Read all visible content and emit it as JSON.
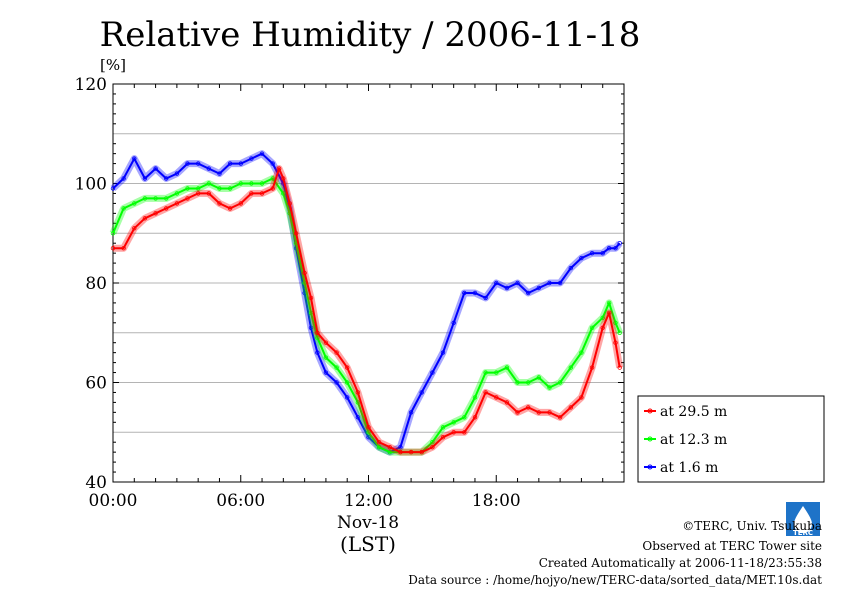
{
  "chart_data": {
    "type": "line",
    "title": "Relative Humidity / 2006-11-18",
    "yunit": "[%]",
    "xlabel_date": "Nov-18",
    "xlabel": "(LST)",
    "ylim": [
      40,
      120
    ],
    "xlim": [
      0,
      24
    ],
    "yticks": [
      "40",
      "60",
      "80",
      "100",
      "120"
    ],
    "xticks": [
      {
        "h": 0,
        "label": "00:00"
      },
      {
        "h": 6,
        "label": "06:00"
      },
      {
        "h": 12,
        "label": "12:00"
      },
      {
        "h": 18,
        "label": "18:00"
      }
    ],
    "grid": true,
    "legend_position": "bottom-right",
    "series": [
      {
        "name": "at 29.5 m",
        "color": "#ff0000",
        "points": [
          [
            0.0,
            87
          ],
          [
            0.5,
            87
          ],
          [
            1.0,
            91
          ],
          [
            1.5,
            93
          ],
          [
            2.0,
            94
          ],
          [
            2.5,
            95
          ],
          [
            3.0,
            96
          ],
          [
            3.5,
            97
          ],
          [
            4.0,
            98
          ],
          [
            4.5,
            98
          ],
          [
            5.0,
            96
          ],
          [
            5.5,
            95
          ],
          [
            6.0,
            96
          ],
          [
            6.5,
            98
          ],
          [
            7.0,
            98
          ],
          [
            7.5,
            99
          ],
          [
            7.8,
            103
          ],
          [
            8.0,
            101
          ],
          [
            8.3,
            96
          ],
          [
            8.6,
            90
          ],
          [
            9.0,
            82
          ],
          [
            9.3,
            77
          ],
          [
            9.6,
            70
          ],
          [
            10.0,
            68
          ],
          [
            10.5,
            66
          ],
          [
            11.0,
            63
          ],
          [
            11.5,
            58
          ],
          [
            12.0,
            51
          ],
          [
            12.5,
            48
          ],
          [
            13.0,
            47
          ],
          [
            13.5,
            46
          ],
          [
            14.0,
            46
          ],
          [
            14.5,
            46
          ],
          [
            15.0,
            47
          ],
          [
            15.5,
            49
          ],
          [
            16.0,
            50
          ],
          [
            16.5,
            50
          ],
          [
            17.0,
            53
          ],
          [
            17.5,
            58
          ],
          [
            18.0,
            57
          ],
          [
            18.5,
            56
          ],
          [
            19.0,
            54
          ],
          [
            19.5,
            55
          ],
          [
            20.0,
            54
          ],
          [
            20.5,
            54
          ],
          [
            21.0,
            53
          ],
          [
            21.5,
            55
          ],
          [
            22.0,
            57
          ],
          [
            22.5,
            63
          ],
          [
            23.0,
            71
          ],
          [
            23.3,
            74
          ],
          [
            23.6,
            68
          ],
          [
            23.8,
            63
          ]
        ]
      },
      {
        "name": "at 12.3 m",
        "color": "#00ff00",
        "points": [
          [
            0.0,
            90
          ],
          [
            0.5,
            95
          ],
          [
            1.0,
            96
          ],
          [
            1.5,
            97
          ],
          [
            2.0,
            97
          ],
          [
            2.5,
            97
          ],
          [
            3.0,
            98
          ],
          [
            3.5,
            99
          ],
          [
            4.0,
            99
          ],
          [
            4.5,
            100
          ],
          [
            5.0,
            99
          ],
          [
            5.5,
            99
          ],
          [
            6.0,
            100
          ],
          [
            6.5,
            100
          ],
          [
            7.0,
            100
          ],
          [
            7.5,
            101
          ],
          [
            8.0,
            98
          ],
          [
            8.3,
            94
          ],
          [
            8.6,
            88
          ],
          [
            9.0,
            80
          ],
          [
            9.3,
            74
          ],
          [
            9.6,
            69
          ],
          [
            10.0,
            65
          ],
          [
            10.5,
            63
          ],
          [
            11.0,
            60
          ],
          [
            11.5,
            56
          ],
          [
            12.0,
            50
          ],
          [
            12.5,
            47
          ],
          [
            13.0,
            46
          ],
          [
            13.5,
            46
          ],
          [
            14.0,
            46
          ],
          [
            14.5,
            46
          ],
          [
            15.0,
            48
          ],
          [
            15.5,
            51
          ],
          [
            16.0,
            52
          ],
          [
            16.5,
            53
          ],
          [
            17.0,
            57
          ],
          [
            17.5,
            62
          ],
          [
            18.0,
            62
          ],
          [
            18.5,
            63
          ],
          [
            19.0,
            60
          ],
          [
            19.5,
            60
          ],
          [
            20.0,
            61
          ],
          [
            20.5,
            59
          ],
          [
            21.0,
            60
          ],
          [
            21.5,
            63
          ],
          [
            22.0,
            66
          ],
          [
            22.5,
            71
          ],
          [
            23.0,
            73
          ],
          [
            23.3,
            76
          ],
          [
            23.6,
            72
          ],
          [
            23.8,
            70
          ]
        ]
      },
      {
        "name": "at 1.6 m",
        "color": "#0000ff",
        "points": [
          [
            0.0,
            99
          ],
          [
            0.5,
            101
          ],
          [
            1.0,
            105
          ],
          [
            1.5,
            101
          ],
          [
            2.0,
            103
          ],
          [
            2.5,
            101
          ],
          [
            3.0,
            102
          ],
          [
            3.5,
            104
          ],
          [
            4.0,
            104
          ],
          [
            4.5,
            103
          ],
          [
            5.0,
            102
          ],
          [
            5.5,
            104
          ],
          [
            6.0,
            104
          ],
          [
            6.5,
            105
          ],
          [
            7.0,
            106
          ],
          [
            7.5,
            104
          ],
          [
            8.0,
            100
          ],
          [
            8.3,
            95
          ],
          [
            8.6,
            87
          ],
          [
            9.0,
            78
          ],
          [
            9.3,
            71
          ],
          [
            9.6,
            66
          ],
          [
            10.0,
            62
          ],
          [
            10.5,
            60
          ],
          [
            11.0,
            57
          ],
          [
            11.5,
            53
          ],
          [
            12.0,
            49
          ],
          [
            12.5,
            47
          ],
          [
            13.0,
            46
          ],
          [
            13.5,
            47
          ],
          [
            14.0,
            54
          ],
          [
            14.5,
            58
          ],
          [
            15.0,
            62
          ],
          [
            15.5,
            66
          ],
          [
            16.0,
            72
          ],
          [
            16.5,
            78
          ],
          [
            17.0,
            78
          ],
          [
            17.5,
            77
          ],
          [
            18.0,
            80
          ],
          [
            18.5,
            79
          ],
          [
            19.0,
            80
          ],
          [
            19.5,
            78
          ],
          [
            20.0,
            79
          ],
          [
            20.5,
            80
          ],
          [
            21.0,
            80
          ],
          [
            21.5,
            83
          ],
          [
            22.0,
            85
          ],
          [
            22.5,
            86
          ],
          [
            23.0,
            86
          ],
          [
            23.3,
            87
          ],
          [
            23.6,
            87
          ],
          [
            23.8,
            88
          ]
        ]
      }
    ]
  },
  "footer": {
    "copyright": "©TERC, Univ. Tsukuba",
    "observed": "Observed at TERC Tower site",
    "created": "Created Automatically at 2006-11-18/23:55:38",
    "source": "Data source : /home/hojyo/new/TERC-data/sorted_data/MET.10s.dat",
    "logo_text": "TERC"
  }
}
